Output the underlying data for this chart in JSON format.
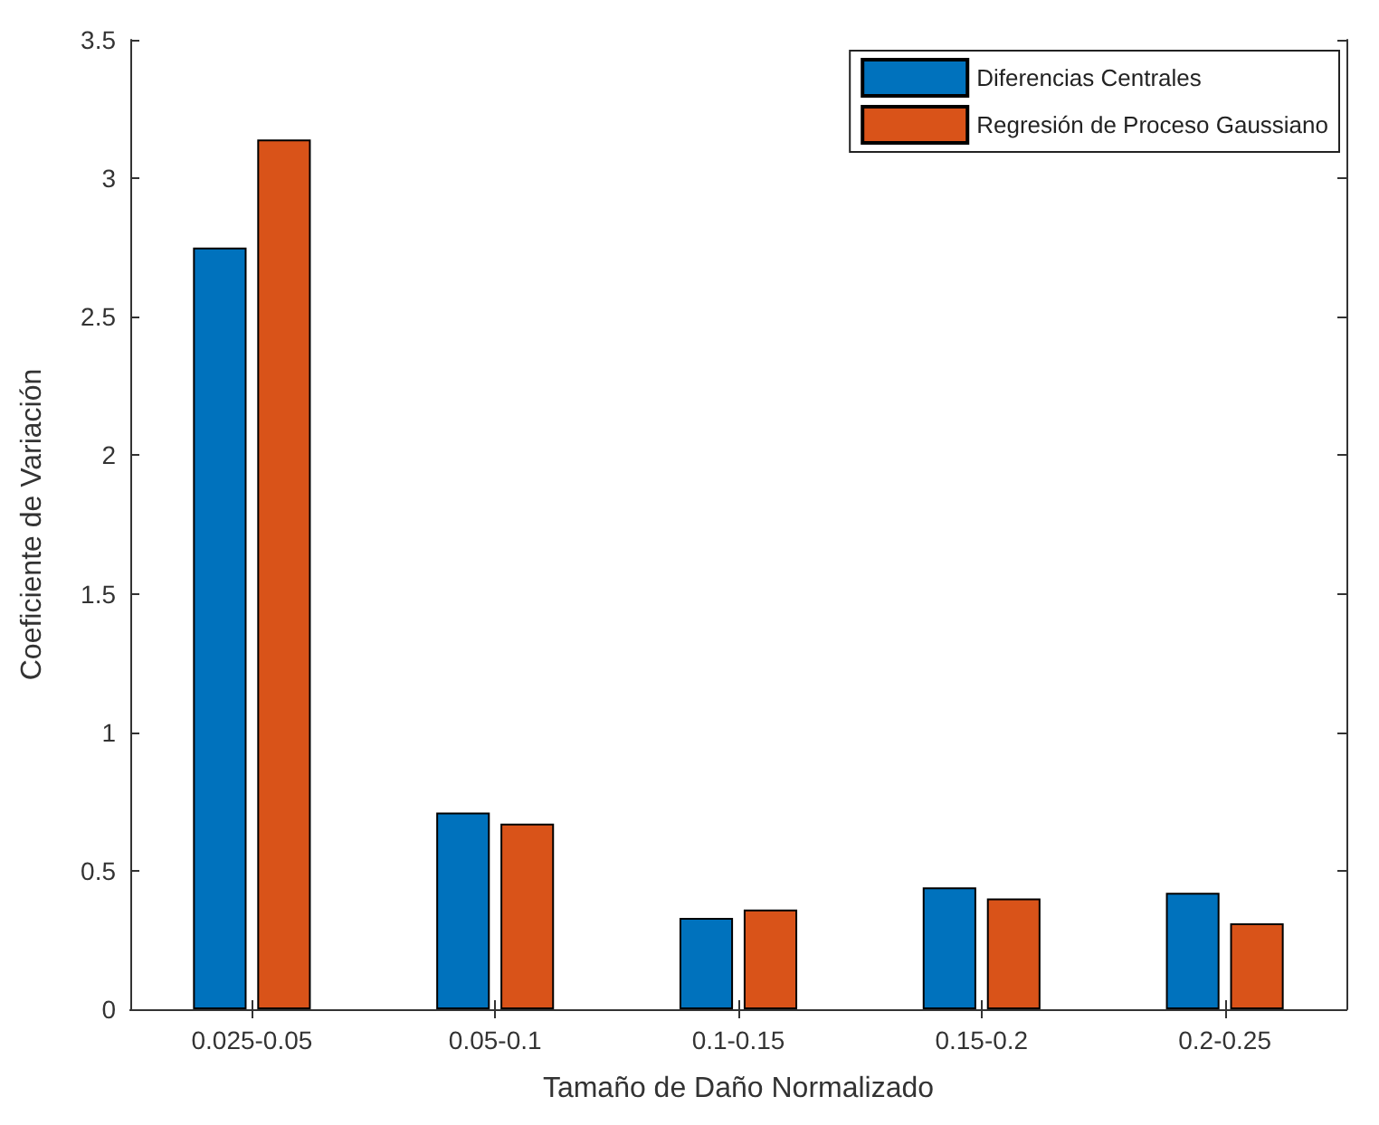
{
  "chart_data": {
    "type": "bar",
    "xlabel": "Tamaño de Daño Normalizado",
    "ylabel": "Coeficiente de Variación",
    "categories": [
      "0.025-0.05",
      "0.05-0.1",
      "0.1-0.15",
      "0.15-0.2",
      "0.2-0.25"
    ],
    "series": [
      {
        "name": "Diferencias Centrales",
        "color": "#0072bd",
        "values": [
          2.75,
          0.71,
          0.33,
          0.44,
          0.42
        ]
      },
      {
        "name": "Regresión de Proceso Gaussiano",
        "color": "#d95319",
        "values": [
          3.14,
          0.67,
          0.36,
          0.4,
          0.31
        ]
      }
    ],
    "ylim": [
      0,
      3.5
    ],
    "yticks": [
      0,
      0.5,
      1,
      1.5,
      2,
      2.5,
      3,
      3.5
    ],
    "grid": false,
    "legend": "top right"
  }
}
